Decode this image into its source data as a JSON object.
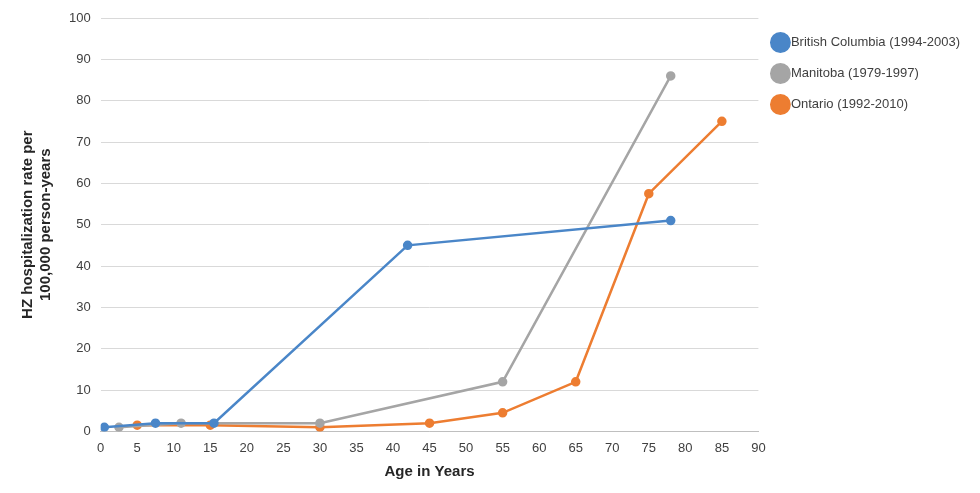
{
  "chart_data": {
    "type": "line",
    "xlabel": "Age in Years",
    "ylabel": [
      "HZ hospitalization rate per",
      "100,000 person-years"
    ],
    "xlim": [
      0,
      90
    ],
    "xticks": [
      0,
      5,
      10,
      15,
      20,
      25,
      30,
      35,
      40,
      45,
      50,
      55,
      60,
      65,
      70,
      75,
      80,
      85,
      90
    ],
    "ylim": [
      0,
      100
    ],
    "yticks": [
      0,
      10,
      20,
      30,
      40,
      50,
      60,
      70,
      80,
      90,
      100
    ],
    "grid": true,
    "legend": "right",
    "marker": "circle",
    "series": [
      {
        "name": "British Columbia (1994-2003)",
        "color": "#4a86c8",
        "x": [
          0.5,
          7.5,
          15.5,
          42,
          78
        ],
        "values": [
          1,
          2,
          2,
          45,
          51
        ]
      },
      {
        "name": "Manitoba (1979-1997)",
        "color": "#a5a5a5",
        "x": [
          2.5,
          11,
          30,
          55,
          78
        ],
        "values": [
          1,
          2,
          2,
          12,
          86
        ]
      },
      {
        "name": "Ontario (1992-2010)",
        "color": "#ed7d31",
        "x": [
          5,
          15,
          30,
          45,
          55,
          65,
          75,
          85
        ],
        "values": [
          1.5,
          1.5,
          1,
          2,
          4.5,
          12,
          57.5,
          75
        ]
      }
    ]
  }
}
